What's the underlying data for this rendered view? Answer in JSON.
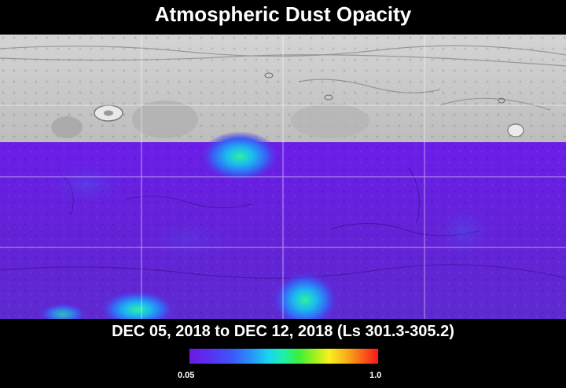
{
  "title": "Atmospheric Dust Opacity",
  "date_range": "DEC 05, 2018 to DEC 12, 2018 (Ls 301.3-305.2)",
  "colorbar": {
    "min_label": "0.05",
    "max_label": "1.0"
  },
  "colors": {
    "no_data_terrain": "#c8c8c8",
    "low_opacity": "#6a1be0",
    "high_opacity": "#f81818",
    "grid": "#ffffff",
    "background": "#000000"
  }
}
